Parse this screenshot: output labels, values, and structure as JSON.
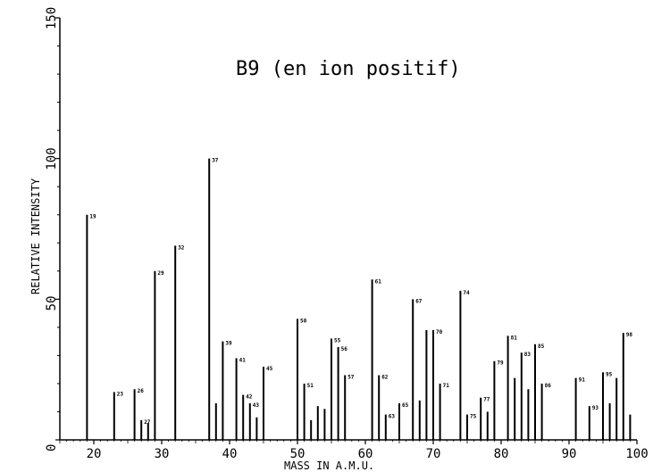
{
  "chart_data": {
    "type": "bar",
    "title": "B9 (en ion positif)",
    "xlabel": "MASS IN A.M.U.",
    "ylabel": "RELATIVE INTENSITY",
    "xlim": [
      15,
      100
    ],
    "ylim": [
      0,
      150
    ],
    "xticks": [
      20,
      30,
      40,
      50,
      60,
      70,
      80,
      90,
      100
    ],
    "yticks": [
      0,
      50,
      100,
      150
    ],
    "peaks": [
      {
        "x": 19,
        "y": 80,
        "label": "19"
      },
      {
        "x": 23,
        "y": 17,
        "label": "23"
      },
      {
        "x": 26,
        "y": 18,
        "label": "26"
      },
      {
        "x": 27,
        "y": 7,
        "label": "27"
      },
      {
        "x": 28,
        "y": 6,
        "label": ""
      },
      {
        "x": 29,
        "y": 60,
        "label": "29"
      },
      {
        "x": 32,
        "y": 69,
        "label": "32"
      },
      {
        "x": 37,
        "y": 100,
        "label": "37"
      },
      {
        "x": 38,
        "y": 13,
        "label": ""
      },
      {
        "x": 39,
        "y": 35,
        "label": "39"
      },
      {
        "x": 41,
        "y": 29,
        "label": "41"
      },
      {
        "x": 42,
        "y": 16,
        "label": "42"
      },
      {
        "x": 43,
        "y": 13,
        "label": "43"
      },
      {
        "x": 44,
        "y": 8,
        "label": ""
      },
      {
        "x": 45,
        "y": 26,
        "label": "45"
      },
      {
        "x": 50,
        "y": 43,
        "label": "50"
      },
      {
        "x": 51,
        "y": 20,
        "label": "51"
      },
      {
        "x": 52,
        "y": 7,
        "label": ""
      },
      {
        "x": 53,
        "y": 12,
        "label": ""
      },
      {
        "x": 54,
        "y": 11,
        "label": ""
      },
      {
        "x": 55,
        "y": 36,
        "label": "55"
      },
      {
        "x": 56,
        "y": 33,
        "label": "56"
      },
      {
        "x": 57,
        "y": 23,
        "label": "57"
      },
      {
        "x": 61,
        "y": 57,
        "label": "61"
      },
      {
        "x": 62,
        "y": 23,
        "label": "62"
      },
      {
        "x": 63,
        "y": 9,
        "label": "63"
      },
      {
        "x": 65,
        "y": 13,
        "label": "65"
      },
      {
        "x": 67,
        "y": 50,
        "label": "67"
      },
      {
        "x": 68,
        "y": 14,
        "label": ""
      },
      {
        "x": 69,
        "y": 39,
        "label": ""
      },
      {
        "x": 70,
        "y": 39,
        "label": "70"
      },
      {
        "x": 71,
        "y": 20,
        "label": "71"
      },
      {
        "x": 74,
        "y": 53,
        "label": "74"
      },
      {
        "x": 75,
        "y": 9,
        "label": "75"
      },
      {
        "x": 77,
        "y": 15,
        "label": "77"
      },
      {
        "x": 78,
        "y": 10,
        "label": ""
      },
      {
        "x": 79,
        "y": 28,
        "label": "79"
      },
      {
        "x": 81,
        "y": 37,
        "label": "81"
      },
      {
        "x": 82,
        "y": 22,
        "label": ""
      },
      {
        "x": 83,
        "y": 31,
        "label": "83"
      },
      {
        "x": 84,
        "y": 18,
        "label": ""
      },
      {
        "x": 85,
        "y": 34,
        "label": "85"
      },
      {
        "x": 86,
        "y": 20,
        "label": "86"
      },
      {
        "x": 91,
        "y": 22,
        "label": "91"
      },
      {
        "x": 93,
        "y": 12,
        "label": "93"
      },
      {
        "x": 95,
        "y": 24,
        "label": "95"
      },
      {
        "x": 96,
        "y": 13,
        "label": ""
      },
      {
        "x": 97,
        "y": 22,
        "label": ""
      },
      {
        "x": 98,
        "y": 38,
        "label": "98"
      },
      {
        "x": 99,
        "y": 9,
        "label": ""
      }
    ]
  }
}
